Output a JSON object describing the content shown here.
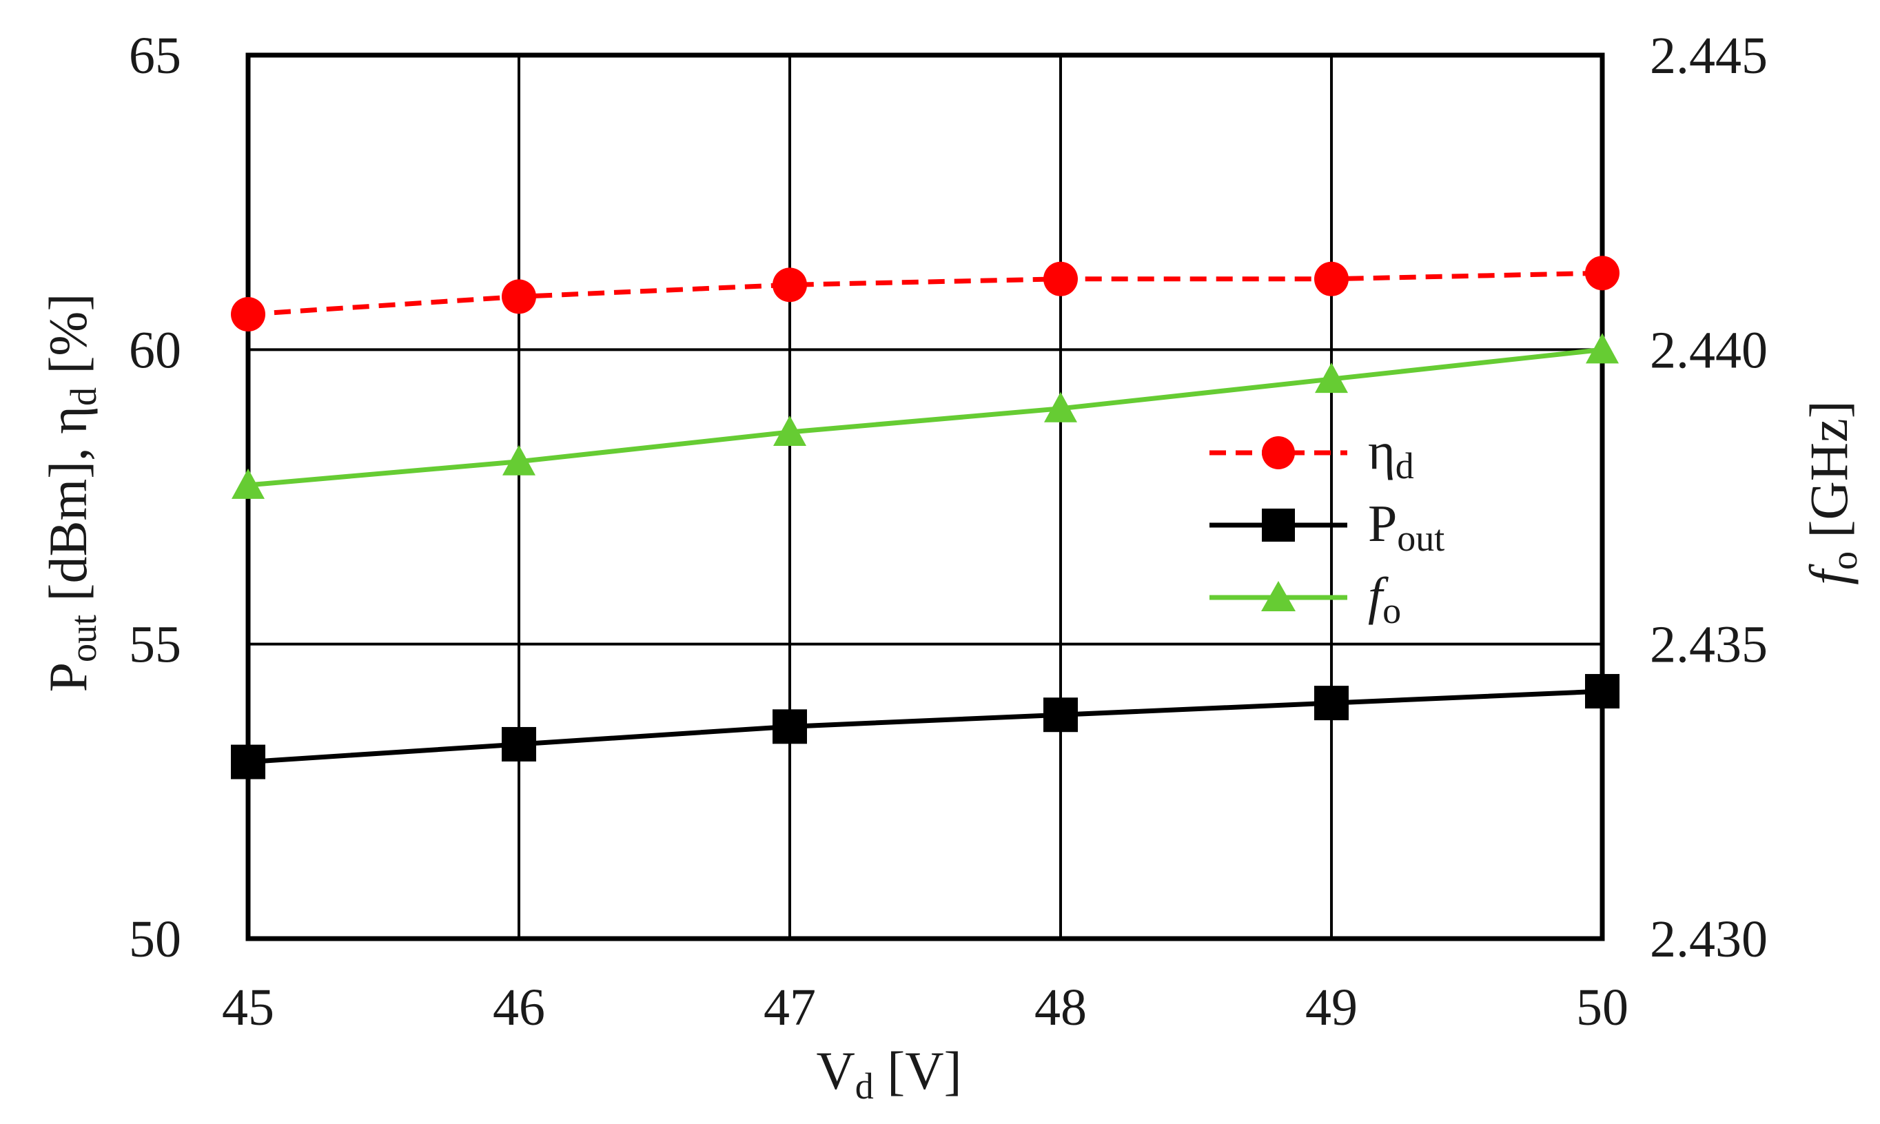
{
  "chart_data": {
    "type": "line",
    "x": [
      45,
      46,
      47,
      48,
      49,
      50
    ],
    "xlim": [
      45,
      50
    ],
    "x_ticks": [
      "45",
      "46",
      "47",
      "48",
      "49",
      "50"
    ],
    "xlabel": {
      "main": "V",
      "sub": "d",
      "unit": " [V]"
    },
    "ylim": [
      50,
      65
    ],
    "y_ticks": [
      "50",
      "55",
      "60",
      "65"
    ],
    "ylabel": {
      "p": "P",
      "p_sub": "out",
      "mid": " [dBm], η",
      "eta_sub": "d",
      "unit": " [%]"
    },
    "y2lim": [
      2.43,
      2.445
    ],
    "y2_ticks": [
      "2.430",
      "2.435",
      "2.440",
      "2.445"
    ],
    "y2label": {
      "f": "f",
      "f_sub": "o",
      "unit": " [GHz]"
    },
    "grid": true,
    "legend_position": "center-right",
    "series": [
      {
        "name": "η",
        "name_sub": "d",
        "axis": "left",
        "color": "#ff0000",
        "line": "dashed",
        "marker": "circle",
        "values": [
          60.6,
          60.9,
          61.1,
          61.2,
          61.2,
          61.3
        ]
      },
      {
        "name": "P",
        "name_sub": "out",
        "axis": "left",
        "color": "#000000",
        "line": "solid",
        "marker": "square",
        "values": [
          53.0,
          53.3,
          53.6,
          53.8,
          54.0,
          54.2
        ]
      },
      {
        "name": "f",
        "name_sub": "o",
        "axis": "right",
        "color": "#66cc33",
        "line": "solid",
        "marker": "triangle",
        "values": [
          2.4377,
          2.4381,
          2.4386,
          2.439,
          2.4395,
          2.44
        ]
      }
    ]
  }
}
